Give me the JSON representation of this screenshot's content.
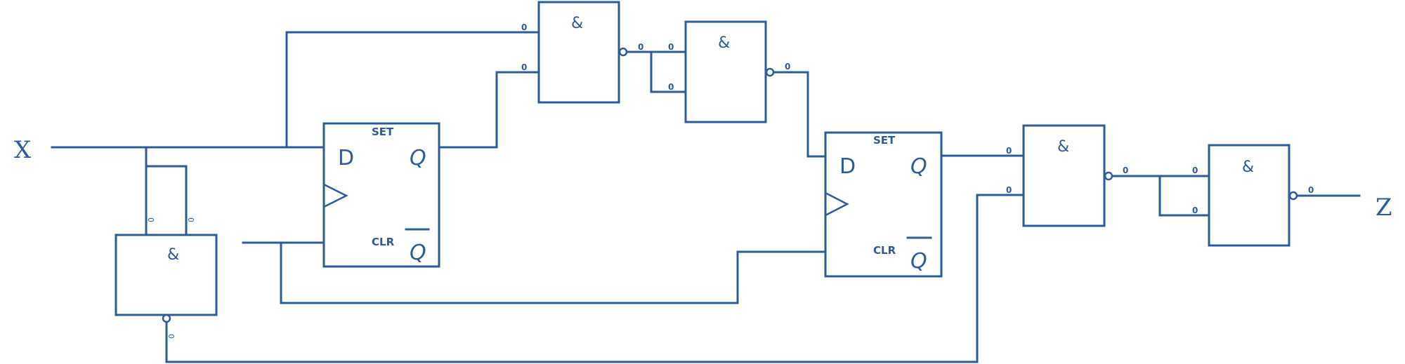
{
  "io": {
    "input": "X",
    "output": "Z"
  },
  "gates": {
    "and_symbol": "&",
    "pin_value": "0"
  },
  "flipflops": {
    "data": "D",
    "q": "Q",
    "q_bar": "Q",
    "set": "SET",
    "clr": "CLR"
  },
  "colors": {
    "line": "#2b5c98",
    "background": "#ffffff"
  }
}
